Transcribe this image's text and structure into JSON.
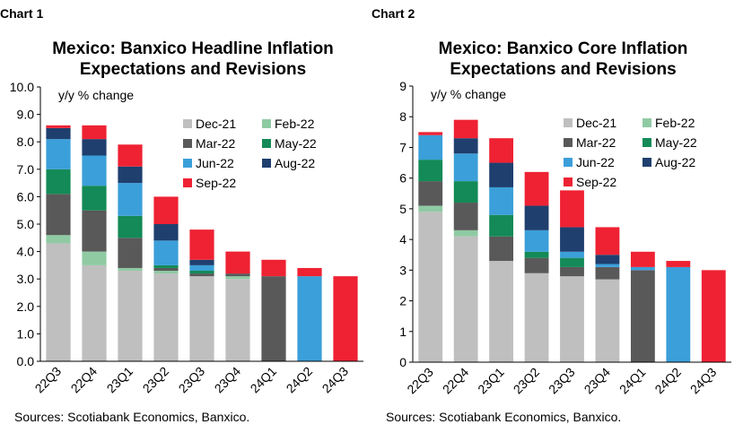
{
  "chart_data": [
    {
      "type": "bar",
      "stacked": true,
      "label": "Chart 1",
      "title": [
        "Mexico: Banxico Headline Inflation",
        "Expectations and Revisions"
      ],
      "annotation": "y/y % change",
      "source": "Sources: Scotiabank Economics, Banxico.",
      "categories": [
        "22Q3",
        "22Q4",
        "23Q1",
        "23Q2",
        "23Q3",
        "23Q4",
        "24Q1",
        "24Q2",
        "24Q3"
      ],
      "ylim": [
        0,
        10
      ],
      "yticks": [
        {
          "value": 0,
          "label": "0.0"
        },
        {
          "value": 1,
          "label": "1.0"
        },
        {
          "value": 2,
          "label": "2.0"
        },
        {
          "value": 3,
          "label": "3.0"
        },
        {
          "value": 4,
          "label": "4.0"
        },
        {
          "value": 5,
          "label": "5.0"
        },
        {
          "value": 6,
          "label": "6.0"
        },
        {
          "value": 7,
          "label": "7.0"
        },
        {
          "value": 8,
          "label": "8.0"
        },
        {
          "value": 9,
          "label": "9.0"
        },
        {
          "value": 10,
          "label": "10.0"
        }
      ],
      "series": [
        {
          "name": "Dec-21",
          "color": "#bfbfbf",
          "values": [
            4.3,
            3.5,
            3.3,
            3.2,
            3.1,
            3.0,
            null,
            null,
            null
          ]
        },
        {
          "name": "Feb-22",
          "color": "#8fcaa3",
          "values": [
            0.3,
            0.5,
            0.1,
            0.1,
            0.0,
            0.1,
            null,
            null,
            null
          ]
        },
        {
          "name": "Mar-22",
          "color": "#595959",
          "values": [
            1.5,
            1.5,
            1.1,
            0.1,
            0.1,
            0.1,
            3.1,
            null,
            null
          ]
        },
        {
          "name": "May-22",
          "color": "#138a57",
          "values": [
            0.9,
            0.9,
            0.8,
            0.1,
            0.1,
            0.0,
            null,
            null,
            null
          ]
        },
        {
          "name": "Jun-22",
          "color": "#3b9fd9",
          "values": [
            1.1,
            1.1,
            1.2,
            0.9,
            0.2,
            0.0,
            null,
            3.1,
            null
          ]
        },
        {
          "name": "Aug-22",
          "color": "#1f3f6e",
          "values": [
            0.4,
            0.6,
            0.6,
            0.6,
            0.2,
            0.0,
            null,
            null,
            null
          ]
        },
        {
          "name": "Sep-22",
          "color": "#ee2233",
          "values": [
            0.1,
            0.5,
            0.8,
            1.0,
            1.1,
            0.8,
            0.6,
            0.3,
            3.1
          ]
        }
      ]
    },
    {
      "type": "bar",
      "stacked": true,
      "label": "Chart 2",
      "title": [
        "Mexico: Banxico Core Inflation",
        "Expectations and Revisions"
      ],
      "annotation": "y/y % change",
      "source": "Sources: Scotiabank Economics, Banxico.",
      "categories": [
        "22Q3",
        "22Q4",
        "23Q1",
        "23Q2",
        "23Q3",
        "23Q4",
        "24Q1",
        "24Q2",
        "24Q3"
      ],
      "ylim": [
        0,
        9
      ],
      "yticks": [
        0,
        1,
        2,
        3,
        4,
        5,
        6,
        7,
        8,
        9
      ],
      "series": [
        {
          "name": "Dec-21",
          "color": "#bfbfbf",
          "values": [
            4.9,
            4.1,
            3.3,
            2.9,
            2.8,
            2.7,
            null,
            null,
            null
          ]
        },
        {
          "name": "Feb-22",
          "color": "#8fcaa3",
          "values": [
            0.2,
            0.2,
            0.0,
            0.0,
            0.0,
            0.0,
            null,
            null,
            null
          ]
        },
        {
          "name": "Mar-22",
          "color": "#595959",
          "values": [
            0.8,
            0.9,
            0.8,
            0.5,
            0.3,
            0.4,
            3.0,
            null,
            null
          ]
        },
        {
          "name": "May-22",
          "color": "#138a57",
          "values": [
            0.7,
            0.7,
            0.7,
            0.2,
            0.3,
            0.0,
            null,
            null,
            null
          ]
        },
        {
          "name": "Jun-22",
          "color": "#3b9fd9",
          "values": [
            0.8,
            0.9,
            0.9,
            0.7,
            0.2,
            0.1,
            0.1,
            3.1,
            null
          ]
        },
        {
          "name": "Aug-22",
          "color": "#1f3f6e",
          "values": [
            0.0,
            0.5,
            0.8,
            0.8,
            0.8,
            0.3,
            null,
            null,
            null
          ]
        },
        {
          "name": "Sep-22",
          "color": "#ee2233",
          "values": [
            0.1,
            0.6,
            0.8,
            1.1,
            1.2,
            0.9,
            0.5,
            0.2,
            3.0
          ]
        }
      ]
    }
  ]
}
